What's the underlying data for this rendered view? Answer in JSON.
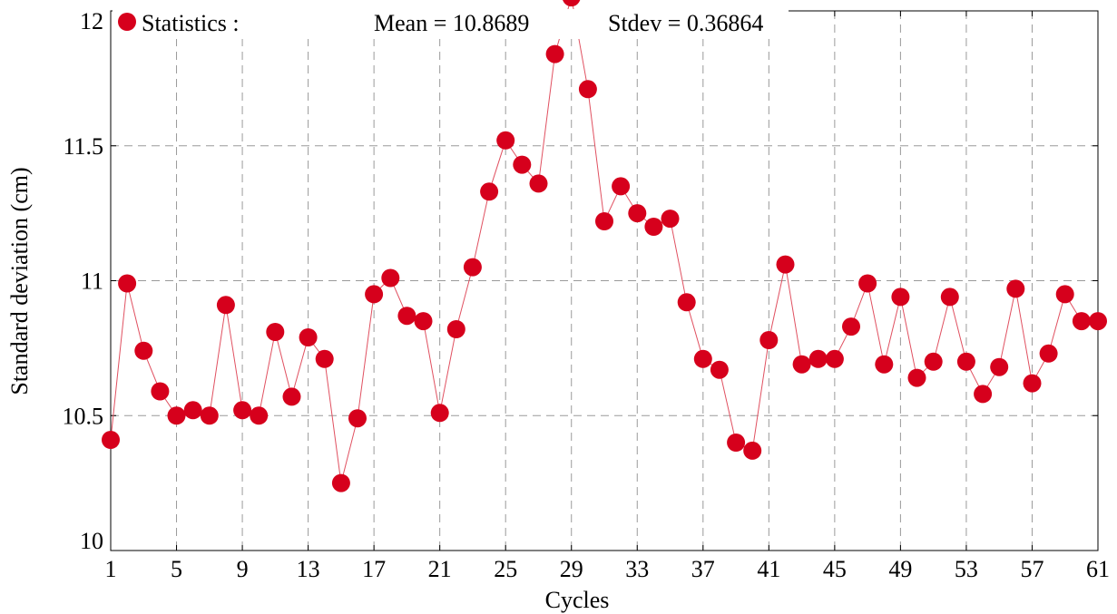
{
  "chart_data": {
    "type": "scatter",
    "xlabel": "Cycles",
    "ylabel": "Standard deviation (cm)",
    "xlim": [
      1,
      61
    ],
    "ylim": [
      10,
      12
    ],
    "x_ticks": [
      1,
      5,
      9,
      13,
      17,
      21,
      25,
      29,
      33,
      37,
      41,
      45,
      49,
      53,
      57,
      61
    ],
    "y_ticks": [
      10,
      10.5,
      11,
      11.5,
      12
    ],
    "y_tick_labels": [
      "10",
      "10.5",
      "11",
      "11.5",
      "12"
    ],
    "grid": true,
    "legend": {
      "placement": "top-left",
      "label": "Statistics :",
      "mean_text": "Mean = 10.8689",
      "stdev_text": "Stdev = 0.36864"
    },
    "colors": {
      "marker": "#d6001c",
      "line": "#e05060",
      "grid": "#9a9a9a"
    },
    "series": [
      {
        "x": [
          1,
          2,
          3,
          4,
          5,
          6,
          7,
          8,
          9,
          10,
          11,
          12,
          13,
          14,
          15,
          16,
          17,
          18,
          19,
          20,
          21,
          22,
          23,
          24,
          25,
          26,
          27,
          28,
          29,
          30,
          31,
          32,
          33,
          34,
          35,
          36,
          37,
          38,
          39,
          40,
          41,
          42,
          43,
          44,
          45,
          46,
          47,
          48,
          49,
          50,
          51,
          52,
          53,
          54,
          55,
          56,
          57,
          58,
          59,
          60,
          61
        ],
        "values": [
          10.41,
          10.99,
          10.74,
          10.59,
          10.5,
          10.52,
          10.5,
          10.91,
          10.52,
          10.5,
          10.81,
          10.57,
          10.79,
          10.71,
          10.25,
          10.49,
          10.95,
          11.01,
          10.87,
          10.85,
          10.51,
          10.82,
          11.05,
          11.33,
          11.52,
          11.43,
          11.36,
          11.84,
          12.05,
          11.71,
          11.22,
          11.35,
          11.25,
          11.2,
          11.23,
          10.92,
          10.71,
          10.67,
          10.4,
          10.37,
          10.78,
          11.06,
          10.69,
          10.71,
          10.71,
          10.83,
          10.99,
          10.69,
          10.94,
          10.64,
          10.7,
          10.94,
          10.7,
          10.58,
          10.68,
          10.97,
          10.62,
          10.73,
          10.95,
          10.85,
          10.85
        ]
      }
    ]
  }
}
